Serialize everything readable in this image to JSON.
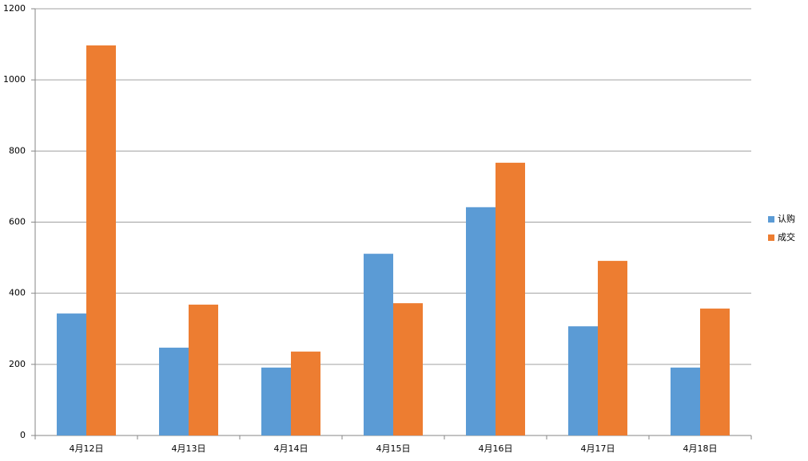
{
  "chart_data": {
    "type": "bar",
    "categories": [
      "4月12日",
      "4月13日",
      "4月14日",
      "4月15日",
      "4月16日",
      "4月17日",
      "4月18日"
    ],
    "series": [
      {
        "name": "认购",
        "color": "#5b9bd5",
        "values": [
          343,
          247,
          191,
          511,
          642,
          307,
          191
        ]
      },
      {
        "name": "成交",
        "color": "#ed7d31",
        "values": [
          1097,
          368,
          236,
          372,
          767,
          491,
          357
        ]
      }
    ],
    "ylim": [
      0,
      1200
    ],
    "yticks": [
      0,
      200,
      400,
      600,
      800,
      1000,
      1200
    ],
    "grid": true,
    "legend": "right"
  }
}
